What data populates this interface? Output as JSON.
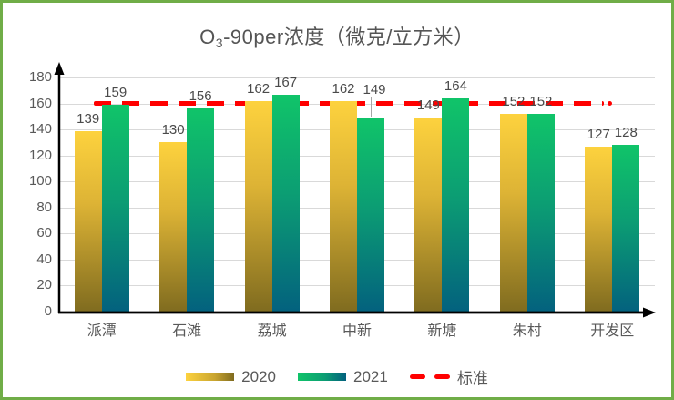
{
  "frame": {
    "border_color": "#70AD47",
    "background": "#FFFFFF"
  },
  "title": {
    "part1": "O",
    "subscript": "3",
    "part2": "-90per浓度（微克/立方米）"
  },
  "chart_data": {
    "type": "bar",
    "title": "O3-90per浓度（微克/立方米）",
    "categories": [
      "派潭",
      "石滩",
      "荔城",
      "中新",
      "新塘",
      "朱村",
      "开发区"
    ],
    "series": [
      {
        "name": "2020",
        "values": [
          139,
          130,
          162,
          162,
          149,
          152,
          127
        ],
        "color_top": "#FDD23E",
        "color_bottom": "#7F6B1F"
      },
      {
        "name": "2021",
        "values": [
          159,
          156,
          167,
          149,
          164,
          152,
          128
        ],
        "color_top": "#10C469",
        "color_bottom": "#03617E"
      }
    ],
    "reference_line": {
      "label": "标准",
      "value": 160,
      "color": "#FF0000",
      "style": "dashed"
    },
    "ylim": [
      0,
      180
    ],
    "yticks": [
      0,
      20,
      40,
      60,
      80,
      100,
      120,
      140,
      160,
      180
    ],
    "xlabel": "",
    "ylabel": "",
    "grid": true,
    "data_labels": true,
    "legend_position": "bottom",
    "label_adjustments": [
      {
        "series": 1,
        "index": 3,
        "dx": 4,
        "dy": -17,
        "leader": true
      }
    ]
  },
  "legend": {
    "items": [
      "2020",
      "2021",
      "标准"
    ]
  },
  "colors": {
    "grid": "#D9D9D9",
    "axis": "#000000",
    "text": "#595959",
    "data_label": "#4A4A4A",
    "reference": "#FF0000"
  }
}
